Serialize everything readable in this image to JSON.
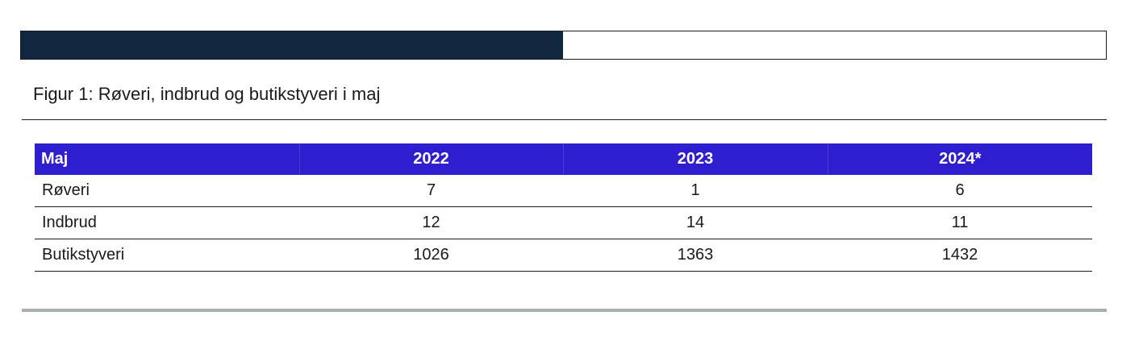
{
  "figure": {
    "title": "Figur 1: Røveri, indbrud og butikstyveri i maj"
  },
  "colors": {
    "top_bar_fill": "#122740",
    "table_header_bg": "#2e1ecf",
    "bottom_rule": "#a7afb5"
  },
  "table": {
    "headers": [
      "Maj",
      "2022",
      "2023",
      "2024*"
    ],
    "rows": [
      [
        "Røveri",
        "7",
        "1",
        "6"
      ],
      [
        "Indbrud",
        "12",
        "14",
        "11"
      ],
      [
        "Butikstyveri",
        "1026",
        "1363",
        "1432"
      ]
    ]
  },
  "chart_data": {
    "type": "table",
    "title": "Figur 1: Røveri, indbrud og butikstyveri i maj",
    "columns": [
      "Maj",
      "2022",
      "2023",
      "2024*"
    ],
    "categories": [
      "Røveri",
      "Indbrud",
      "Butikstyveri"
    ],
    "series": [
      {
        "name": "2022",
        "values": [
          7,
          12,
          1026
        ]
      },
      {
        "name": "2023",
        "values": [
          1,
          14,
          1363
        ]
      },
      {
        "name": "2024*",
        "values": [
          6,
          11,
          1432
        ]
      }
    ]
  }
}
